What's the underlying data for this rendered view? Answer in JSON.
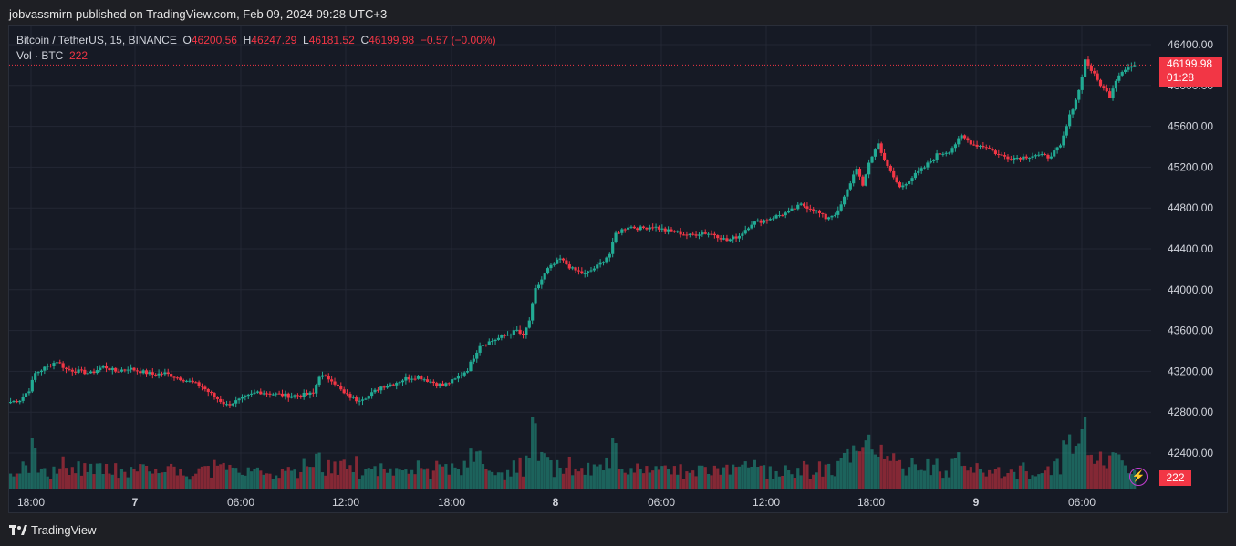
{
  "header": "jobvassmirn published on TradingView.com, Feb 09, 2024 09:28 UTC+3",
  "legend": {
    "symbol": "Bitcoin / TetherUS, 15, BINANCE",
    "o_label": "O",
    "o_value": "46200.56",
    "h_label": "H",
    "h_value": "46247.29",
    "l_label": "L",
    "l_value": "46181.52",
    "c_label": "C",
    "c_value": "46199.98",
    "change": "−0.57 (−0.00%)",
    "vol_label": "Vol · BTC",
    "vol_value": "222"
  },
  "price_label": {
    "price": "46199.98",
    "countdown": "01:28"
  },
  "volume_label": "222",
  "footer": {
    "brand": "TradingView"
  },
  "colors": {
    "up": "#22ab94",
    "down": "#f23645",
    "background": "#161a25",
    "grid": "#232734"
  },
  "chart_data": {
    "type": "candlestick",
    "y_axis_ticks": [
      "46400.00",
      "46000.00",
      "45600.00",
      "45200.00",
      "44800.00",
      "44400.00",
      "44000.00",
      "43600.00",
      "43200.00",
      "42800.00",
      "42400.00"
    ],
    "x_axis_ticks": [
      "18:00",
      "7",
      "06:00",
      "12:00",
      "18:00",
      "8",
      "06:00",
      "12:00",
      "18:00",
      "9",
      "06:00"
    ],
    "ylim": [
      42100,
      46450
    ],
    "current_price": 46199.98,
    "anchors": [
      [
        0,
        42900
      ],
      [
        3,
        42920
      ],
      [
        6,
        43020
      ],
      [
        8,
        43180
      ],
      [
        12,
        43250
      ],
      [
        15,
        43300
      ],
      [
        18,
        43220
      ],
      [
        22,
        43200
      ],
      [
        26,
        43180
      ],
      [
        30,
        43250
      ],
      [
        34,
        43200
      ],
      [
        38,
        43230
      ],
      [
        42,
        43200
      ],
      [
        46,
        43170
      ],
      [
        50,
        43180
      ],
      [
        54,
        43140
      ],
      [
        58,
        43100
      ],
      [
        62,
        43050
      ],
      [
        66,
        42950
      ],
      [
        70,
        42870
      ],
      [
        75,
        42930
      ],
      [
        80,
        43000
      ],
      [
        85,
        42980
      ],
      [
        90,
        42960
      ],
      [
        95,
        42970
      ],
      [
        98,
        42980
      ],
      [
        100,
        43160
      ],
      [
        104,
        43120
      ],
      [
        108,
        42980
      ],
      [
        112,
        42920
      ],
      [
        116,
        42960
      ],
      [
        120,
        43050
      ],
      [
        124,
        43080
      ],
      [
        128,
        43130
      ],
      [
        132,
        43150
      ],
      [
        136,
        43100
      ],
      [
        140,
        43060
      ],
      [
        144,
        43120
      ],
      [
        148,
        43220
      ],
      [
        152,
        43460
      ],
      [
        156,
        43500
      ],
      [
        160,
        43550
      ],
      [
        164,
        43600
      ],
      [
        166,
        43540
      ],
      [
        168,
        43700
      ],
      [
        170,
        44000
      ],
      [
        174,
        44200
      ],
      [
        178,
        44300
      ],
      [
        182,
        44200
      ],
      [
        186,
        44150
      ],
      [
        190,
        44230
      ],
      [
        194,
        44350
      ],
      [
        196,
        44550
      ],
      [
        200,
        44620
      ],
      [
        204,
        44600
      ],
      [
        208,
        44620
      ],
      [
        212,
        44580
      ],
      [
        216,
        44560
      ],
      [
        220,
        44530
      ],
      [
        224,
        44560
      ],
      [
        228,
        44540
      ],
      [
        232,
        44480
      ],
      [
        236,
        44530
      ],
      [
        240,
        44650
      ],
      [
        244,
        44680
      ],
      [
        248,
        44720
      ],
      [
        252,
        44760
      ],
      [
        256,
        44830
      ],
      [
        260,
        44790
      ],
      [
        264,
        44700
      ],
      [
        268,
        44760
      ],
      [
        270,
        44900
      ],
      [
        274,
        45200
      ],
      [
        276,
        45000
      ],
      [
        278,
        45250
      ],
      [
        281,
        45430
      ],
      [
        284,
        45200
      ],
      [
        288,
        45000
      ],
      [
        292,
        45100
      ],
      [
        296,
        45200
      ],
      [
        300,
        45320
      ],
      [
        304,
        45360
      ],
      [
        308,
        45500
      ],
      [
        312,
        45420
      ],
      [
        316,
        45400
      ],
      [
        320,
        45320
      ],
      [
        324,
        45290
      ],
      [
        328,
        45300
      ],
      [
        332,
        45320
      ],
      [
        336,
        45300
      ],
      [
        340,
        45400
      ],
      [
        343,
        45700
      ],
      [
        346,
        45950
      ],
      [
        348,
        46250
      ],
      [
        350,
        46150
      ],
      [
        352,
        46050
      ],
      [
        354,
        45970
      ],
      [
        356,
        45900
      ],
      [
        358,
        46060
      ],
      [
        360,
        46150
      ],
      [
        364,
        46200
      ]
    ]
  }
}
